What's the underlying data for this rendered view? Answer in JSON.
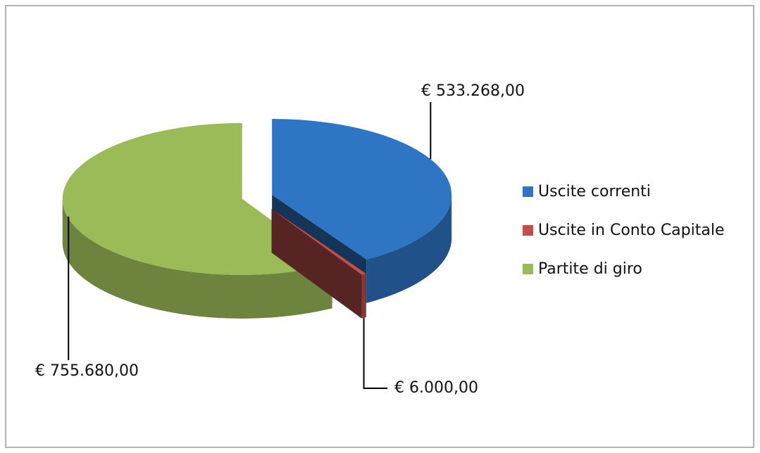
{
  "chart_data": {
    "type": "pie3d",
    "categories": [
      "Uscite correnti",
      "Uscite in Conto Capitale",
      "Partite di giro"
    ],
    "values": [
      533268,
      6000,
      755680
    ],
    "value_labels": [
      "€ 533.268,00",
      "€ 6.000,00",
      "€ 755.680,00"
    ],
    "colors": [
      "#2e75c4",
      "#c0504d",
      "#9bbb59"
    ],
    "legend": "right"
  }
}
